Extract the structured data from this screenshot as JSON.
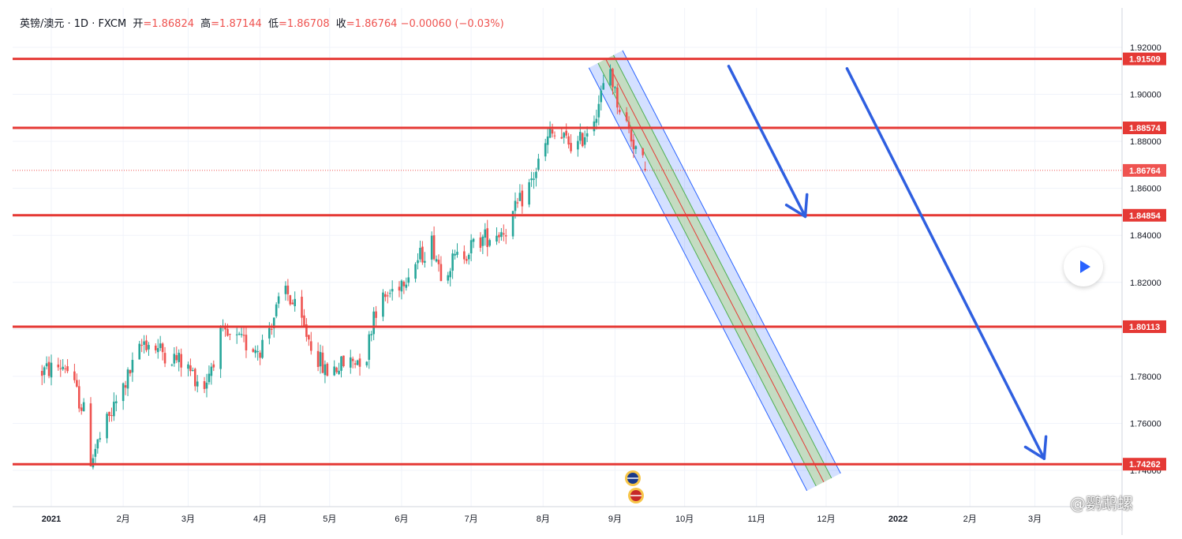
{
  "header": {
    "symbol": "英镑/澳元 · 1D · FXCM",
    "open_label": "开",
    "open_value": "=1.86824",
    "high_label": "高",
    "high_value": "=1.87144",
    "low_label": "低",
    "low_value": "=1.86708",
    "close_label": "收",
    "close_value": "=1.86764",
    "change": "−0.00060 (−0.03%)"
  },
  "watermark": "@鹦鹉螺",
  "colors": {
    "up": "#26a69a",
    "down": "#ef5350",
    "level_line": "#e53935",
    "arrow": "#2f5fe0",
    "grid": "#f0f3fa",
    "axis_text": "#131722"
  },
  "chart_data": {
    "type": "candlestick",
    "title": "",
    "ylim": [
      1.735,
      1.925
    ],
    "y_ticks": [
      "1.92000",
      "1.90000",
      "1.88000",
      "1.86000",
      "1.84000",
      "1.82000",
      "1.80000",
      "1.78000",
      "1.76000",
      "1.74000"
    ],
    "x_ticks": [
      "2021",
      "2月",
      "3月",
      "4月",
      "5月",
      "6月",
      "7月",
      "8月",
      "9月",
      "10月",
      "11月",
      "12月",
      "2022",
      "2月",
      "3月"
    ],
    "horizontal_levels": [
      "1.91509",
      "1.88574",
      "1.84854",
      "1.80113",
      "1.74262"
    ],
    "last_price": "1.86764",
    "series": [
      {
        "anchors": [
          {
            "date": "2020-12-28",
            "close": 1.782
          },
          {
            "date": "2021-01-07",
            "close": 1.785
          },
          {
            "date": "2021-01-15",
            "close": 1.765
          },
          {
            "date": "2021-01-18",
            "close": 1.745
          },
          {
            "date": "2021-01-25",
            "close": 1.76
          },
          {
            "date": "2021-02-10",
            "close": 1.795
          },
          {
            "date": "2021-02-26",
            "close": 1.786
          },
          {
            "date": "2021-03-08",
            "close": 1.776
          },
          {
            "date": "2021-03-15",
            "close": 1.797
          },
          {
            "date": "2021-04-01",
            "close": 1.792
          },
          {
            "date": "2021-04-12",
            "close": 1.817
          },
          {
            "date": "2021-04-22",
            "close": 1.796
          },
          {
            "date": "2021-04-29",
            "close": 1.782
          },
          {
            "date": "2021-05-17",
            "close": 1.789
          },
          {
            "date": "2021-05-20",
            "close": 1.808
          },
          {
            "date": "2021-06-01",
            "close": 1.821
          },
          {
            "date": "2021-06-14",
            "close": 1.837
          },
          {
            "date": "2021-06-18",
            "close": 1.825
          },
          {
            "date": "2021-07-05",
            "close": 1.838
          },
          {
            "date": "2021-07-16",
            "close": 1.843
          },
          {
            "date": "2021-07-27",
            "close": 1.863
          },
          {
            "date": "2021-08-04",
            "close": 1.883
          },
          {
            "date": "2021-08-16",
            "close": 1.878
          },
          {
            "date": "2021-08-23",
            "close": 1.891
          },
          {
            "date": "2021-08-30",
            "close": 1.911
          },
          {
            "date": "2021-09-01",
            "close": 1.9
          },
          {
            "date": "2021-09-08",
            "close": 1.882
          },
          {
            "date": "2021-09-14",
            "close": 1.868
          }
        ]
      }
    ],
    "regression_channel": {
      "start": {
        "date": "2021-08-28",
        "value": 1.915
      },
      "end": {
        "date": "2021-11-30",
        "value": 1.735
      }
    },
    "arrows": [
      {
        "start": {
          "date": "2021-10-20",
          "value": 1.912
        },
        "end": {
          "date": "2021-11-22",
          "value": 1.848
        }
      },
      {
        "start": {
          "date": "2021-12-10",
          "value": 1.911
        },
        "end": {
          "date": "2022-03-05",
          "value": 1.745
        }
      }
    ]
  }
}
